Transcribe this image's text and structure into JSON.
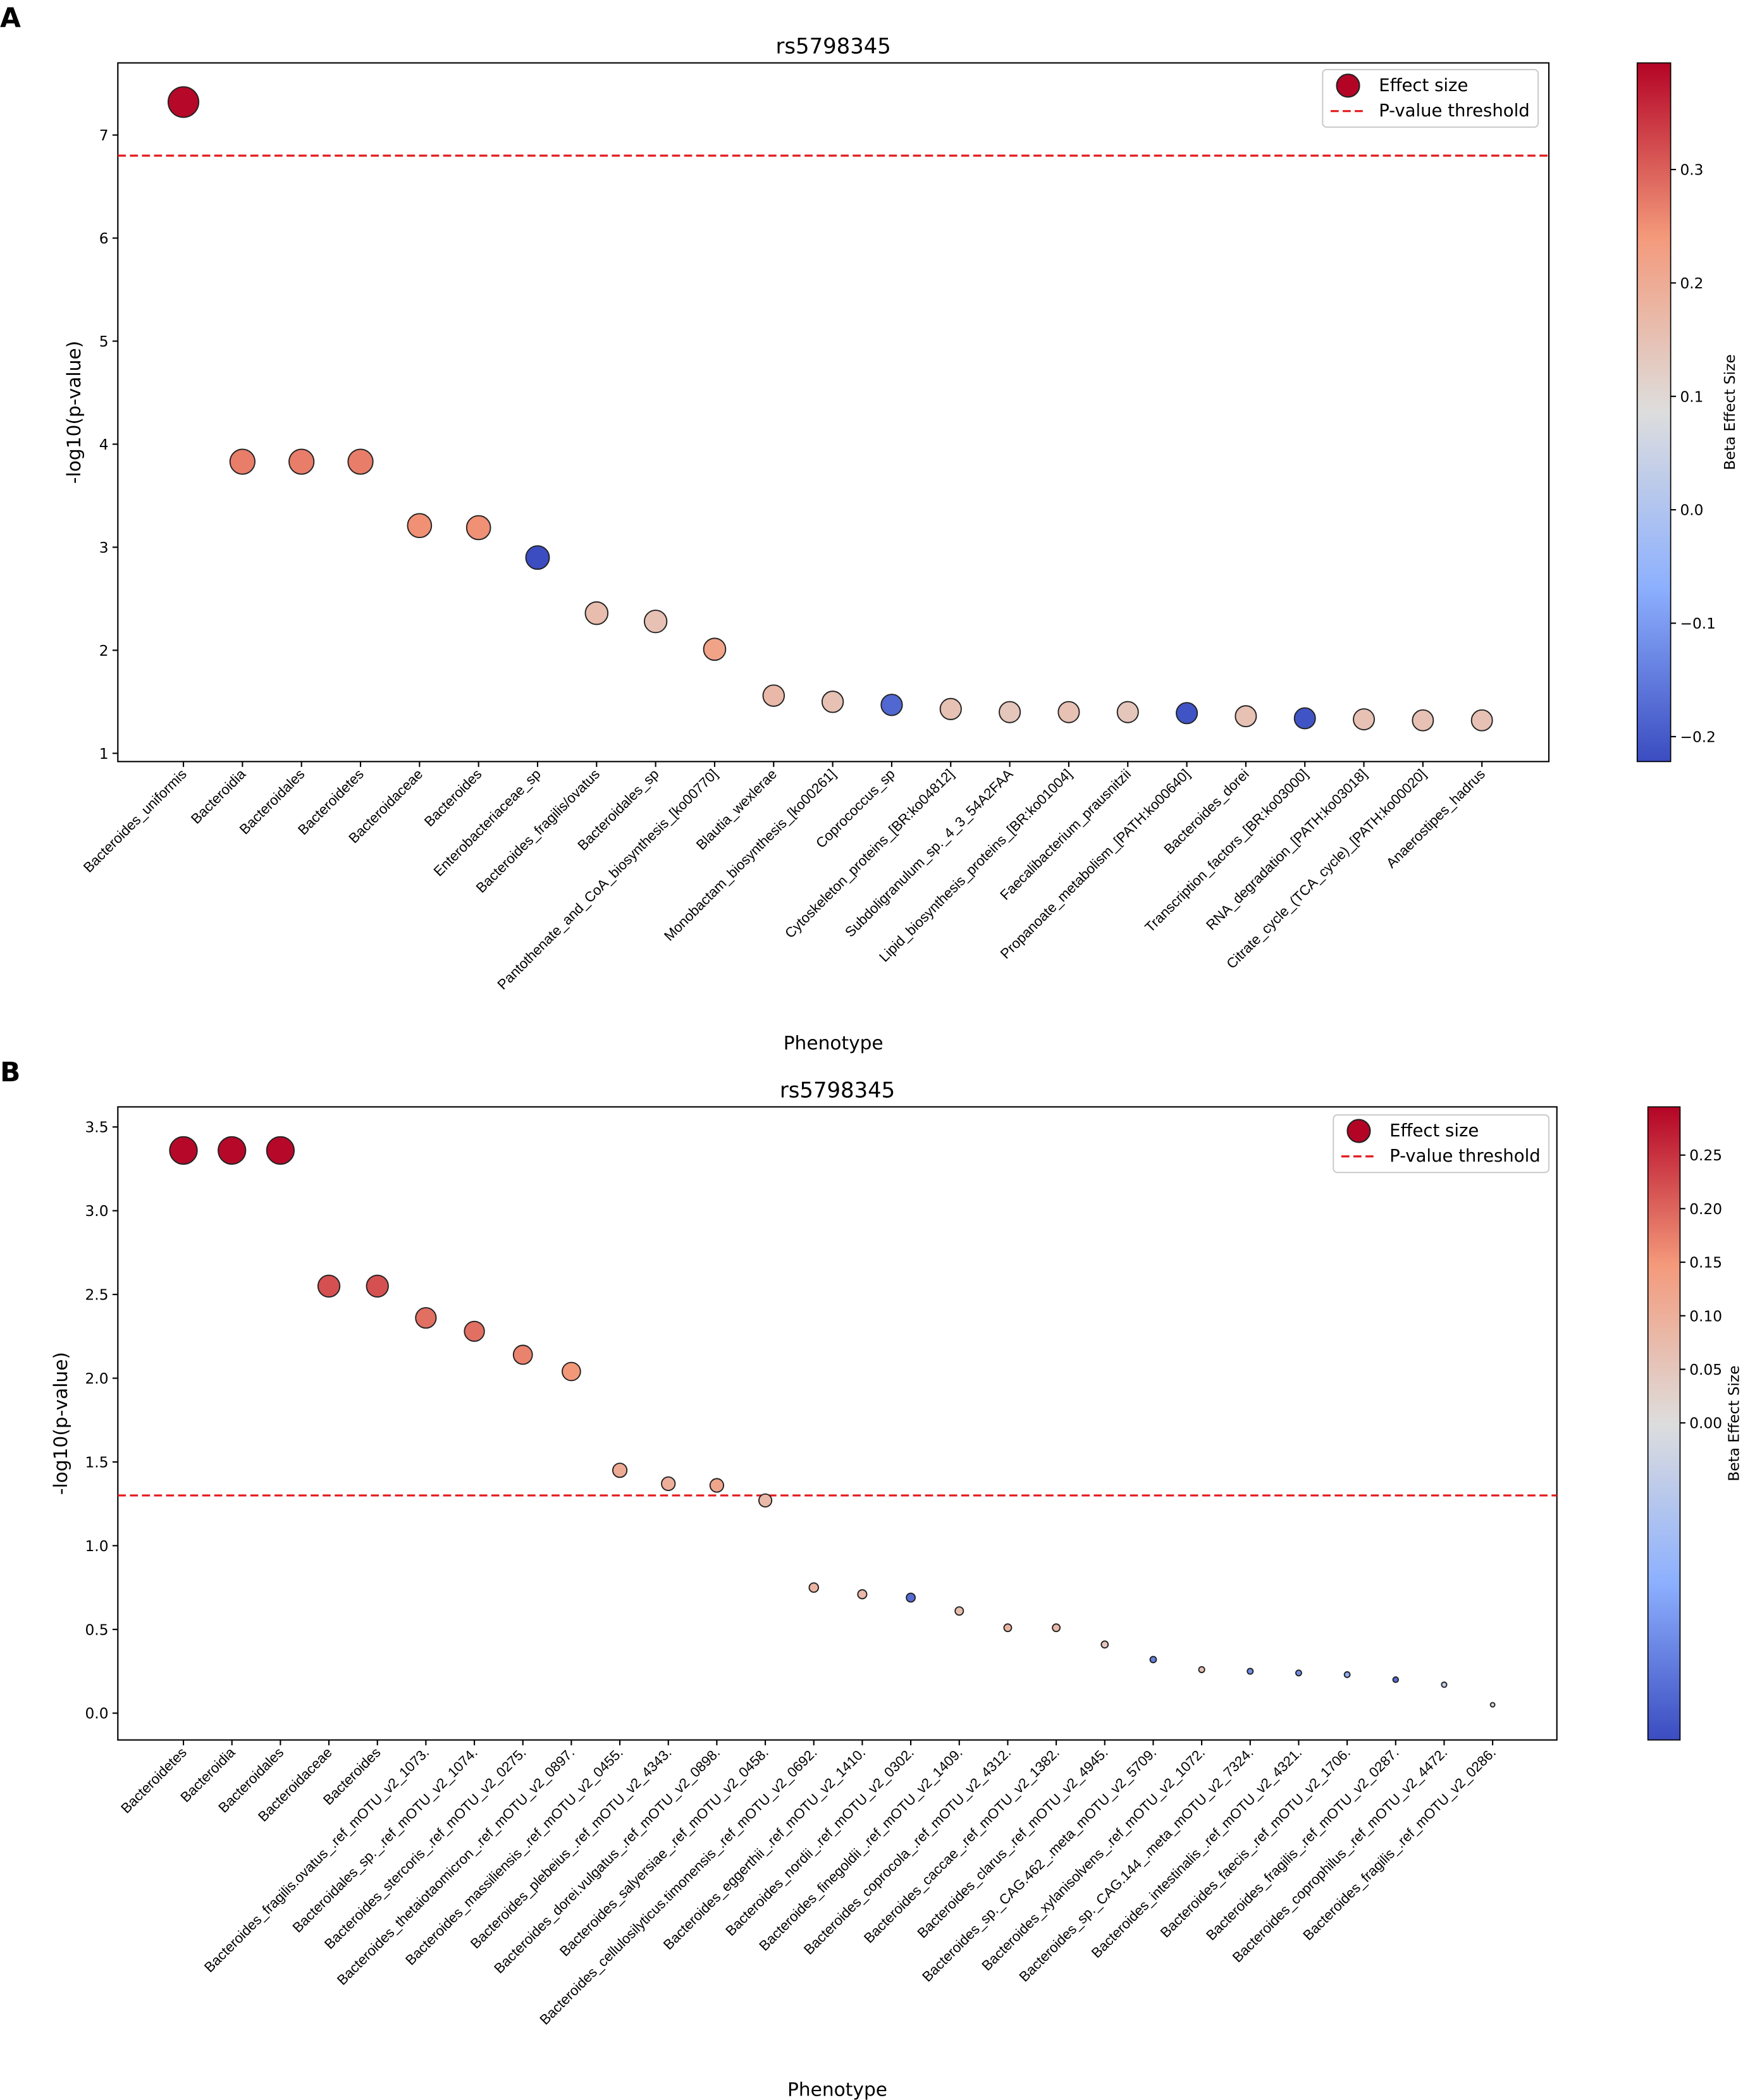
{
  "chart_data": [
    {
      "panel": "A",
      "type": "scatter",
      "title": "rs5798345",
      "xlabel": "Phenotype",
      "ylabel": "-log10(p-value)",
      "ylim": [
        0.92,
        7.7
      ],
      "yticks": [
        1,
        2,
        3,
        4,
        5,
        6,
        7
      ],
      "threshold": 6.8,
      "colorbar": {
        "label": "Beta Effect Size",
        "range": [
          -0.222,
          0.394
        ],
        "ticks": [
          -0.2,
          -0.1,
          0.0,
          0.1,
          0.2,
          0.3
        ],
        "tick_labels": [
          "−0.2",
          "−0.1",
          "0.0",
          "0.1",
          "0.2",
          "0.3"
        ]
      },
      "legend": {
        "effect_size": "Effect size",
        "threshold": "P-value threshold",
        "placement": "top-right"
      },
      "categories": [
        "Bacteroides_uniformis",
        "Bacteroidia",
        "Bacteroidales",
        "Bacteroidetes",
        "Bacteroidaceae",
        "Bacteroides",
        "Enterobacteriaceae_sp",
        "Bacteroides_fragilis/ovatus",
        "Bacteroidales_sp",
        "Pantothenate_and_CoA_biosynthesis_[ko00770]",
        "Blautia_wexlerae",
        "Monobactam_biosynthesis_[ko00261]",
        "Coprococcus_sp",
        "Cytoskeleton_proteins_[BR:ko04812]",
        "Subdoligranulum_sp._4_3_54A2FAA",
        "Lipid_biosynthesis_proteins_[BR:ko01004]",
        "Faecalibacterium_prausnitzii",
        "Propanoate_metabolism_[PATH:ko00640]",
        "Bacteroides_dorei",
        "Transcription_factors_[BR:ko03000]",
        "RNA_degradation_[PATH:ko03018]",
        "Citrate_cycle_(TCA_cycle)_[PATH:ko00020]",
        "Anaerostipes_hadrus"
      ],
      "neglog10p": [
        7.32,
        3.83,
        3.83,
        3.83,
        3.21,
        3.19,
        2.9,
        2.36,
        2.28,
        2.01,
        1.56,
        1.5,
        1.47,
        1.43,
        1.4,
        1.4,
        1.4,
        1.39,
        1.36,
        1.34,
        1.33,
        1.32,
        1.32
      ],
      "beta": [
        0.39,
        0.27,
        0.27,
        0.27,
        0.25,
        0.25,
        -0.22,
        0.16,
        0.15,
        0.22,
        0.17,
        0.15,
        -0.18,
        0.15,
        0.14,
        0.15,
        0.14,
        -0.21,
        0.15,
        -0.21,
        0.15,
        0.15,
        0.15
      ]
    },
    {
      "panel": "B",
      "type": "scatter",
      "title": "rs5798345",
      "xlabel": "Phenotype",
      "ylabel": "-log10(p-value)",
      "ylim": [
        -0.16,
        3.62
      ],
      "yticks": [
        0.0,
        0.5,
        1.0,
        1.5,
        2.0,
        2.5,
        3.0,
        3.5
      ],
      "threshold": 1.3,
      "colorbar": {
        "label": "Beta Effect Size",
        "range": [
          -0.296,
          0.295
        ],
        "ticks": [
          0.0,
          0.05,
          0.1,
          0.15,
          0.2,
          0.25
        ],
        "tick_labels": [
          "0.00",
          "0.05",
          "0.10",
          "0.15",
          "0.20",
          "0.25"
        ]
      },
      "legend": {
        "effect_size": "Effect size",
        "threshold": "P-value threshold",
        "placement": "top-right"
      },
      "categories": [
        "Bacteroidetes",
        "Bacteroidia",
        "Bacteroidales",
        "Bacteroidaceae",
        "Bacteroides",
        "Bacteroides_fragilis.ovatus_.ref_mOTU_v2_1073.",
        "Bacteroidales_sp._.ref_mOTU_v2_1074.",
        "Bacteroides_stercoris_.ref_mOTU_v2_0275.",
        "Bacteroides_thetaiotaomicron_.ref_mOTU_v2_0897.",
        "Bacteroides_massiliensis_.ref_mOTU_v2_0455.",
        "Bacteroides_plebeius_.ref_mOTU_v2_4343.",
        "Bacteroides_dorei.vulgatus_.ref_mOTU_v2_0898.",
        "Bacteroides_salyersiae_.ref_mOTU_v2_0458.",
        "Bacteroides_cellulosilyticus.timonensis_.ref_mOTU_v2_0692.",
        "Bacteroides_eggerthii_.ref_mOTU_v2_1410.",
        "Bacteroides_nordii_.ref_mOTU_v2_0302.",
        "Bacteroides_finegoldii_.ref_mOTU_v2_1409.",
        "Bacteroides_coprocola_.ref_mOTU_v2_4312.",
        "Bacteroides_caccae_.ref_mOTU_v2_1382.",
        "Bacteroides_clarus_.ref_mOTU_v2_4945.",
        "Bacteroides_sp._CAG.462_.meta_mOTU_v2_5709.",
        "Bacteroides_xylanisolvens_.ref_mOTU_v2_1072.",
        "Bacteroides_sp._CAG.144_.meta_mOTU_v2_7324.",
        "Bacteroides_intestinalis_.ref_mOTU_v2_4321.",
        "Bacteroides_faecis_.ref_mOTU_v2_1706.",
        "Bacteroides_fragilis_.ref_mOTU_v2_0287.",
        "Bacteroides_coprophilus_.ref_mOTU_v2_4472.",
        "Bacteroides_fragilis_.ref_mOTU_v2_0286."
      ],
      "neglog10p": [
        3.36,
        3.36,
        3.36,
        2.55,
        2.55,
        2.36,
        2.28,
        2.14,
        2.04,
        1.45,
        1.37,
        1.36,
        1.27,
        0.75,
        0.71,
        0.69,
        0.61,
        0.51,
        0.51,
        0.41,
        0.32,
        0.26,
        0.25,
        0.24,
        0.23,
        0.2,
        0.17,
        0.05
      ],
      "beta": [
        0.29,
        0.29,
        0.29,
        0.22,
        0.22,
        0.19,
        0.19,
        0.17,
        0.15,
        0.11,
        0.1,
        0.12,
        0.08,
        0.09,
        0.08,
        -0.25,
        0.07,
        0.09,
        0.08,
        0.05,
        -0.22,
        0.06,
        -0.2,
        -0.2,
        -0.15,
        -0.25,
        -0.05,
        0.0
      ]
    }
  ],
  "panel_labels": [
    "A",
    "B"
  ]
}
